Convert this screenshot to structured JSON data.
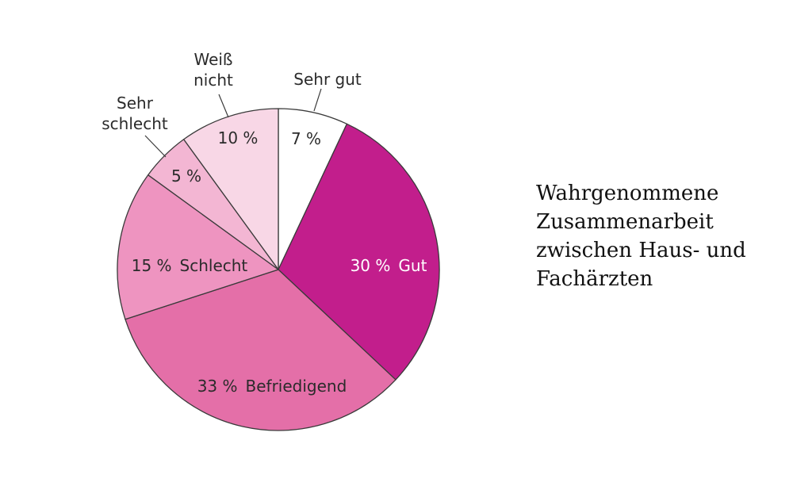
{
  "chart_data": {
    "type": "pie",
    "start_angle_deg": 0,
    "direction": "clockwise",
    "slices": [
      {
        "label": "Sehr gut",
        "value": 7,
        "value_text": "7 %",
        "color": "#ffffff",
        "label_position": "outside"
      },
      {
        "label": "Gut",
        "value": 30,
        "value_text": "30 %",
        "color": "#c21e8c",
        "label_position": "inside"
      },
      {
        "label": "Befriedigend",
        "value": 33,
        "value_text": "33 %",
        "color": "#e46fa8",
        "label_position": "inside"
      },
      {
        "label": "Schlecht",
        "value": 15,
        "value_text": "15 %",
        "color": "#ee94c0",
        "label_position": "inside"
      },
      {
        "label": "Sehr schlecht",
        "value": 5,
        "value_text": "5 %",
        "color": "#f3b6d3",
        "label_position": "outside"
      },
      {
        "label": "Weiß nicht",
        "value": 10,
        "value_text": "10 %",
        "color": "#f8d7e6",
        "label_position": "outside"
      }
    ],
    "outside_labels": {
      "sehr_gut": [
        "Sehr gut"
      ],
      "sehr_schlecht": [
        "Sehr",
        "schlecht"
      ],
      "weiss_nicht": [
        "Weiß",
        "nicht"
      ]
    }
  },
  "side_title": {
    "lines": [
      "Wahrgenommene",
      "Zusammenarbeit",
      "zwischen Haus- und",
      "Fachärzten"
    ]
  },
  "colors": {
    "stroke": "#3a3a3a",
    "text": "#2b2b2b",
    "inside_dark_text": "#ffffff"
  }
}
